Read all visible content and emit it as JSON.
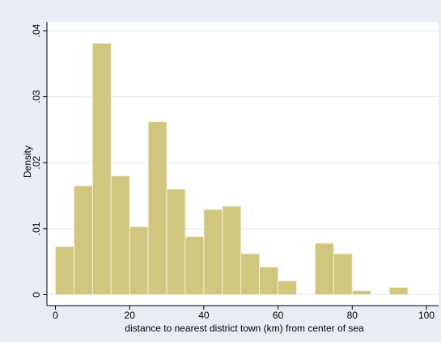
{
  "chart_data": {
    "type": "bar",
    "xlabel": "distance to nearest district town (km) from center of sea",
    "ylabel": "Density",
    "xlim": [
      0,
      100
    ],
    "ylim": [
      0,
      0.04
    ],
    "x_ticks": [
      0,
      20,
      40,
      60,
      80,
      100
    ],
    "y_ticks": [
      "0",
      ".01",
      ".02",
      ".03",
      ".04"
    ],
    "y_tick_values": [
      0,
      0.01,
      0.02,
      0.03,
      0.04
    ],
    "bin_width": 5,
    "bins": [
      {
        "start": 0,
        "density": 0.0073
      },
      {
        "start": 5,
        "density": 0.0165
      },
      {
        "start": 10,
        "density": 0.0381
      },
      {
        "start": 15,
        "density": 0.018
      },
      {
        "start": 20,
        "density": 0.0103
      },
      {
        "start": 25,
        "density": 0.0262
      },
      {
        "start": 30,
        "density": 0.016
      },
      {
        "start": 35,
        "density": 0.0088
      },
      {
        "start": 40,
        "density": 0.0129
      },
      {
        "start": 45,
        "density": 0.0134
      },
      {
        "start": 50,
        "density": 0.0062
      },
      {
        "start": 55,
        "density": 0.0042
      },
      {
        "start": 60,
        "density": 0.0021
      },
      {
        "start": 65,
        "density": 0
      },
      {
        "start": 70,
        "density": 0.0078
      },
      {
        "start": 75,
        "density": 0.0062
      },
      {
        "start": 80,
        "density": 0.0006
      },
      {
        "start": 85,
        "density": 0
      },
      {
        "start": 90,
        "density": 0.0011
      }
    ],
    "grid": true,
    "legend": "none",
    "colors": {
      "bar_fill": "#d0c67d",
      "bar_stroke": "#f2f0da",
      "plot_bg": "#ffffff",
      "outer_bg": "#e8edf3",
      "grid": "#e3e8ee"
    }
  }
}
